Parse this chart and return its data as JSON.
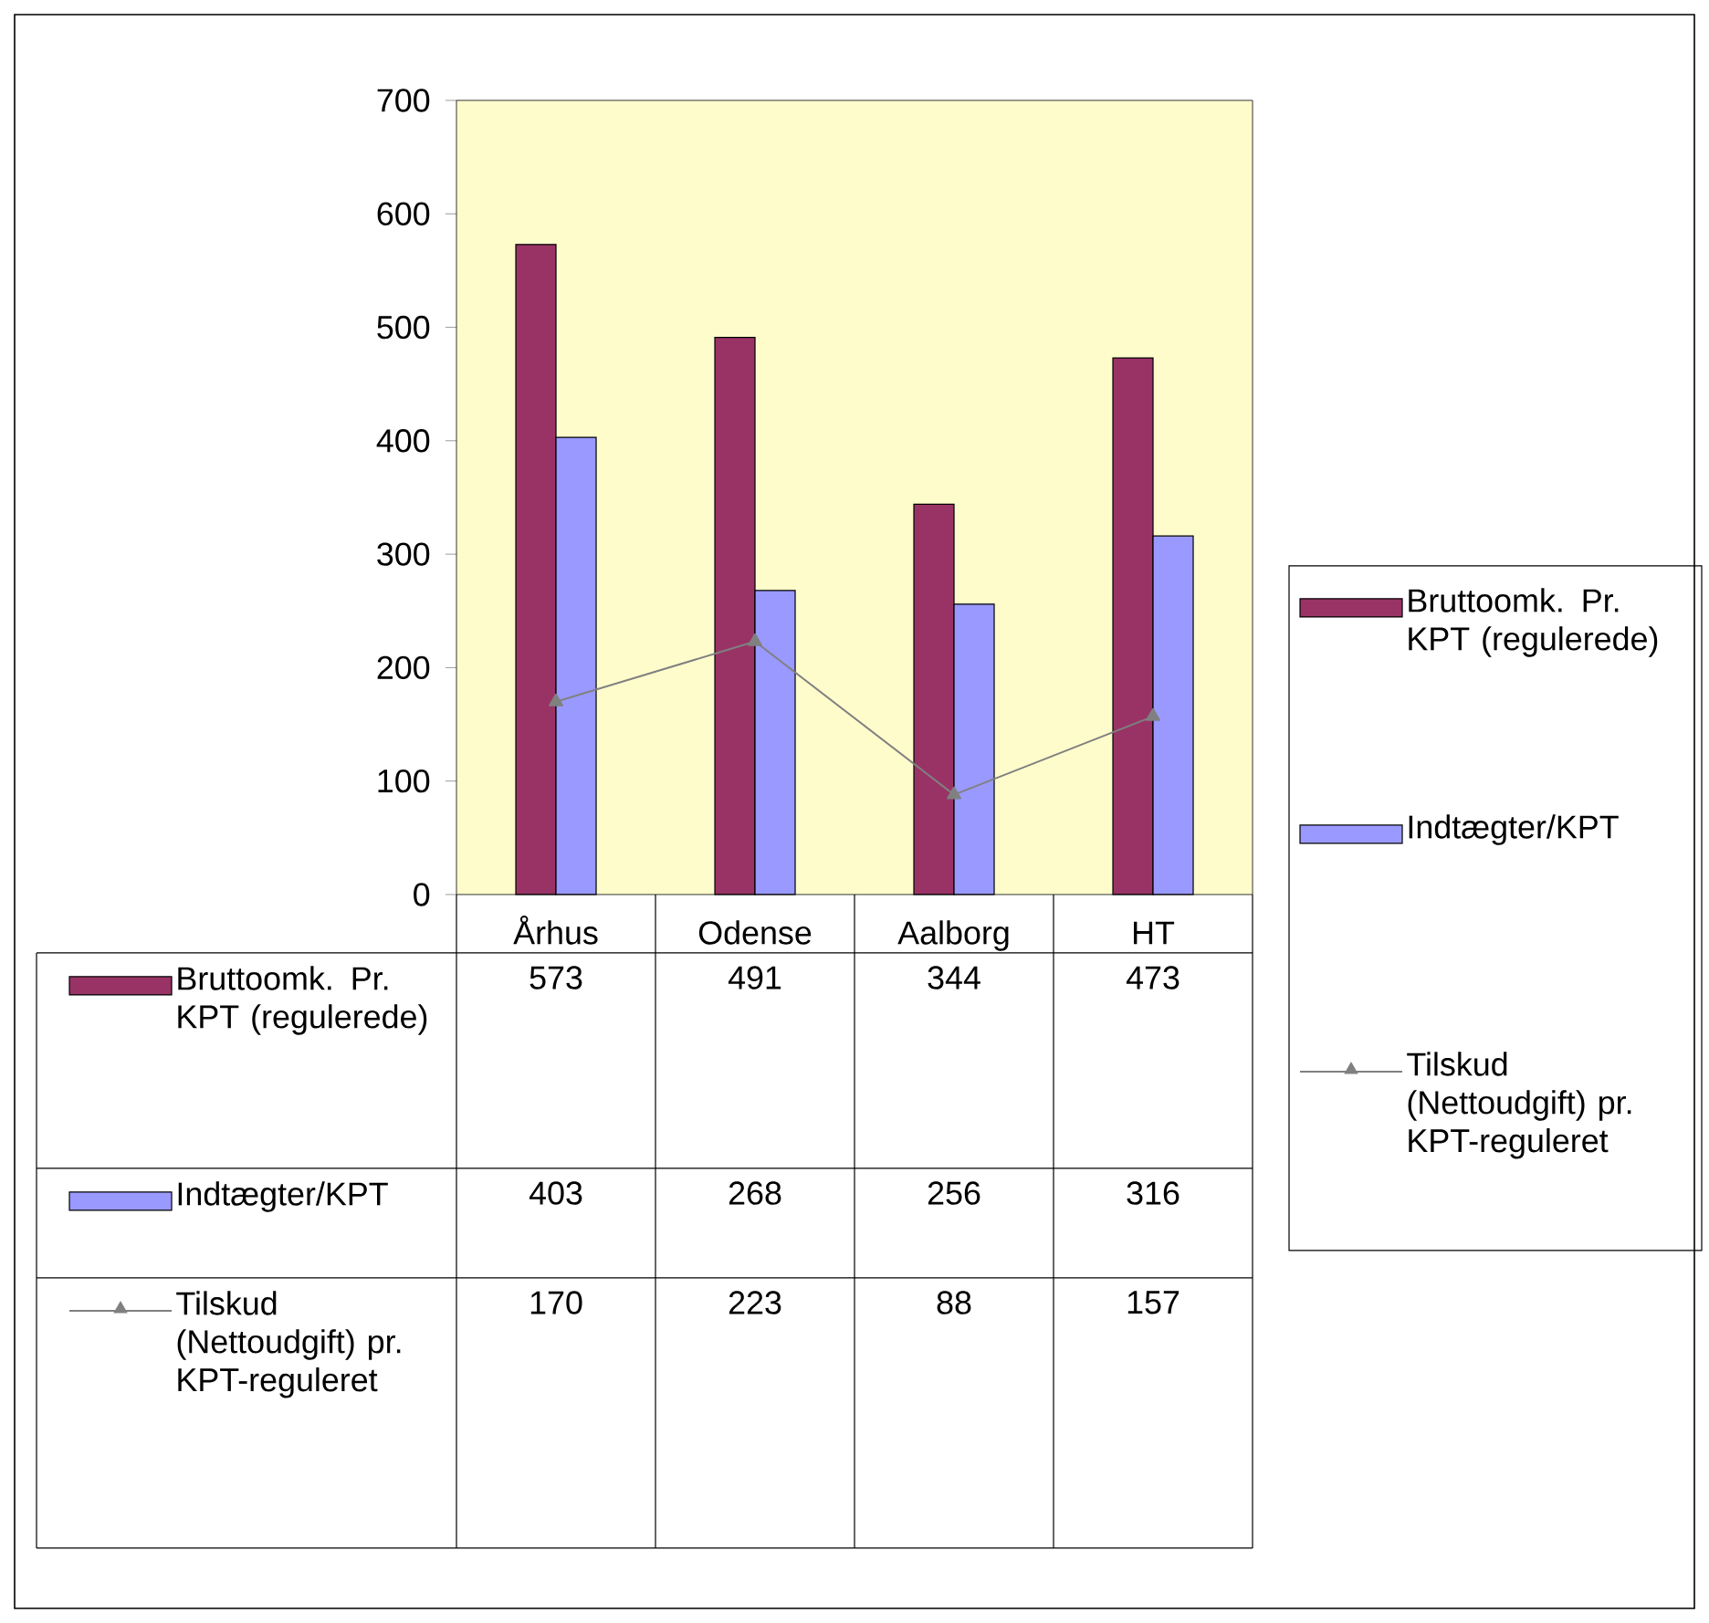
{
  "chart_data": {
    "type": "bar",
    "categories": [
      "Århus",
      "Odense",
      "Aalborg",
      "HT"
    ],
    "series": [
      {
        "name": "Bruttoomk. Pr. KPT (regulerede)",
        "color": "#993366",
        "values": [
          573,
          491,
          344,
          473
        ]
      },
      {
        "name": "Indtægter/KPT",
        "color": "#9999ff",
        "values": [
          403,
          268,
          256,
          316
        ]
      },
      {
        "name": "Tilskud (Nettoudgift) pr. KPT-reguleret",
        "type": "line",
        "color": "#808080",
        "marker": "triangle",
        "values": [
          170,
          223,
          88,
          157
        ]
      }
    ],
    "ylim": [
      0,
      700
    ],
    "yticks": [
      0,
      100,
      200,
      300,
      400,
      500,
      600,
      700
    ],
    "legend": "right",
    "data_labels": true
  }
}
